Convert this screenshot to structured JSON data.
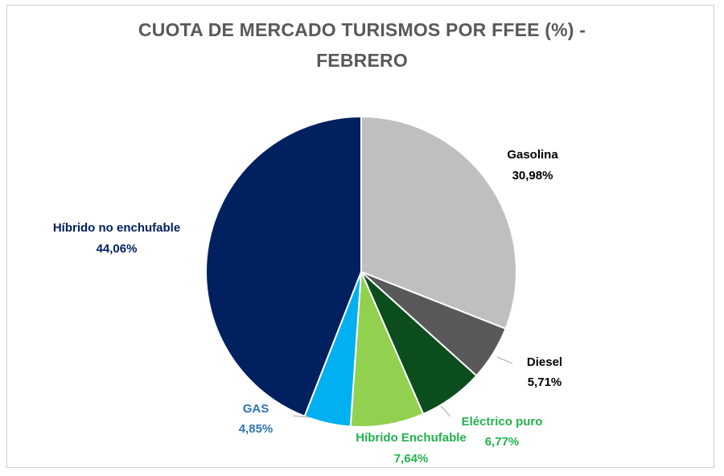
{
  "chart_data": {
    "type": "pie",
    "title": "CUOTA DE MERCADO TURISMOS POR FFEE (%)  -",
    "title_line2": "FEBRERO",
    "slices": [
      {
        "label": "Gasolina",
        "value": 30.98,
        "value_label": "30,98%",
        "color": "#bfbfbf",
        "label_color": "#000000"
      },
      {
        "label": "Diesel",
        "value": 5.71,
        "value_label": "5,71%",
        "color": "#595959",
        "label_color": "#000000"
      },
      {
        "label": "Eléctrico puro",
        "value": 6.77,
        "value_label": "6,77%",
        "color": "#0b4d1c",
        "label_color": "#22b24c"
      },
      {
        "label": "Híbrido Enchufable",
        "value": 7.64,
        "value_label": "7,64%",
        "color": "#92d050",
        "label_color": "#22b24c"
      },
      {
        "label": "GAS",
        "value": 4.85,
        "value_label": "4,85%",
        "color": "#00b0f0",
        "label_color": "#2e75b6"
      },
      {
        "label": "Híbrido no enchufable",
        "value": 44.06,
        "value_label": "44,06%",
        "color": "#002060",
        "label_color": "#002060"
      }
    ],
    "legend": "none"
  }
}
